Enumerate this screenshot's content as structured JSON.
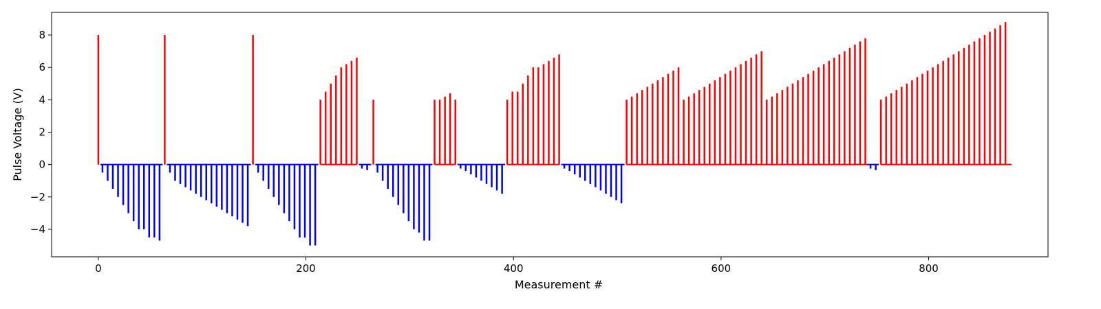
{
  "chart_data": {
    "type": "bar",
    "title": "",
    "xlabel": "Measurement #",
    "ylabel": "Pulse Voltage (V)",
    "xlim": [
      -45,
      915
    ],
    "ylim": [
      -5.7,
      9.4
    ],
    "xticks": [
      0,
      200,
      400,
      600,
      800
    ],
    "yticks": [
      -4,
      -2,
      0,
      2,
      4,
      6,
      8
    ],
    "xtick_labels": [
      "0",
      "200",
      "400",
      "600",
      "800"
    ],
    "ytick_labels": [
      "−4",
      "−2",
      "0",
      "2",
      "4",
      "6",
      "8"
    ],
    "grid": false,
    "legend": "none",
    "colors": {
      "positive": "#ff0000",
      "negative": "#0000ff"
    },
    "series": [
      {
        "color": "#ff0000",
        "points": [
          [
            0,
            8
          ],
          [
            64,
            8
          ],
          [
            149,
            8
          ],
          [
            214,
            4
          ],
          [
            219,
            4.5
          ],
          [
            224,
            5
          ],
          [
            229,
            5.5
          ],
          [
            234,
            6
          ],
          [
            239,
            6.2
          ],
          [
            244,
            6.4
          ],
          [
            249,
            6.6
          ],
          [
            265,
            4
          ],
          [
            324,
            4
          ],
          [
            329,
            4
          ],
          [
            334,
            4.2
          ],
          [
            339,
            4.4
          ],
          [
            344,
            4
          ],
          [
            394,
            4
          ],
          [
            399,
            4.5
          ],
          [
            404,
            4.5
          ],
          [
            409,
            5
          ],
          [
            414,
            5.5
          ],
          [
            419,
            6
          ],
          [
            424,
            6
          ],
          [
            429,
            6.2
          ],
          [
            434,
            6.4
          ],
          [
            439,
            6.6
          ],
          [
            444,
            6.8
          ],
          [
            509,
            4
          ],
          [
            514,
            4.2
          ],
          [
            519,
            4.4
          ],
          [
            524,
            4.6
          ],
          [
            529,
            4.8
          ],
          [
            534,
            5
          ],
          [
            539,
            5.2
          ],
          [
            544,
            5.4
          ],
          [
            549,
            5.6
          ],
          [
            554,
            5.8
          ],
          [
            559,
            6
          ],
          [
            564,
            4
          ],
          [
            569,
            4.2
          ],
          [
            574,
            4.4
          ],
          [
            579,
            4.6
          ],
          [
            584,
            4.8
          ],
          [
            589,
            5
          ],
          [
            594,
            5.2
          ],
          [
            599,
            5.4
          ],
          [
            604,
            5.6
          ],
          [
            609,
            5.8
          ],
          [
            614,
            6
          ],
          [
            619,
            6.2
          ],
          [
            624,
            6.4
          ],
          [
            629,
            6.6
          ],
          [
            634,
            6.8
          ],
          [
            639,
            7
          ],
          [
            644,
            4
          ],
          [
            649,
            4.2
          ],
          [
            654,
            4.4
          ],
          [
            659,
            4.6
          ],
          [
            664,
            4.8
          ],
          [
            669,
            5
          ],
          [
            674,
            5.2
          ],
          [
            679,
            5.4
          ],
          [
            684,
            5.6
          ],
          [
            689,
            5.8
          ],
          [
            694,
            6
          ],
          [
            699,
            6.2
          ],
          [
            704,
            6.4
          ],
          [
            709,
            6.6
          ],
          [
            714,
            6.8
          ],
          [
            719,
            7
          ],
          [
            724,
            7.2
          ],
          [
            729,
            7.4
          ],
          [
            734,
            7.6
          ],
          [
            739,
            7.8
          ],
          [
            754,
            4
          ],
          [
            759,
            4.2
          ],
          [
            764,
            4.4
          ],
          [
            769,
            4.6
          ],
          [
            774,
            4.8
          ],
          [
            779,
            5
          ],
          [
            784,
            5.2
          ],
          [
            789,
            5.4
          ],
          [
            794,
            5.6
          ],
          [
            799,
            5.8
          ],
          [
            804,
            6
          ],
          [
            809,
            6.2
          ],
          [
            814,
            6.4
          ],
          [
            819,
            6.6
          ],
          [
            824,
            6.8
          ],
          [
            829,
            7
          ],
          [
            834,
            7.2
          ],
          [
            839,
            7.4
          ],
          [
            844,
            7.6
          ],
          [
            849,
            7.8
          ],
          [
            854,
            8
          ],
          [
            859,
            8.2
          ],
          [
            864,
            8.4
          ],
          [
            869,
            8.6
          ],
          [
            874,
            8.8
          ]
        ]
      },
      {
        "color": "#0000ff",
        "points": [
          [
            4,
            -0.5
          ],
          [
            9,
            -1
          ],
          [
            14,
            -1.5
          ],
          [
            19,
            -2
          ],
          [
            24,
            -2.5
          ],
          [
            29,
            -3
          ],
          [
            34,
            -3.5
          ],
          [
            39,
            -4
          ],
          [
            44,
            -4
          ],
          [
            49,
            -4.5
          ],
          [
            54,
            -4.5
          ],
          [
            59,
            -4.7
          ],
          [
            69,
            -0.5
          ],
          [
            74,
            -1
          ],
          [
            79,
            -1.2
          ],
          [
            84,
            -1.4
          ],
          [
            89,
            -1.6
          ],
          [
            94,
            -1.8
          ],
          [
            99,
            -2
          ],
          [
            104,
            -2.2
          ],
          [
            109,
            -2.4
          ],
          [
            114,
            -2.6
          ],
          [
            119,
            -2.8
          ],
          [
            124,
            -3
          ],
          [
            129,
            -3.2
          ],
          [
            134,
            -3.4
          ],
          [
            139,
            -3.6
          ],
          [
            144,
            -3.8
          ],
          [
            154,
            -0.5
          ],
          [
            159,
            -1
          ],
          [
            164,
            -1.5
          ],
          [
            169,
            -2
          ],
          [
            174,
            -2.5
          ],
          [
            179,
            -3
          ],
          [
            184,
            -3.5
          ],
          [
            189,
            -4
          ],
          [
            194,
            -4.5
          ],
          [
            199,
            -4.5
          ],
          [
            204,
            -5
          ],
          [
            209,
            -5
          ],
          [
            254,
            -0.25
          ],
          [
            259,
            -0.35
          ],
          [
            269,
            -0.5
          ],
          [
            274,
            -1
          ],
          [
            279,
            -1.5
          ],
          [
            284,
            -2
          ],
          [
            289,
            -2.5
          ],
          [
            294,
            -3
          ],
          [
            299,
            -3.5
          ],
          [
            304,
            -4
          ],
          [
            309,
            -4.2
          ],
          [
            314,
            -4.7
          ],
          [
            319,
            -4.7
          ],
          [
            349,
            -0.25
          ],
          [
            354,
            -0.4
          ],
          [
            359,
            -0.6
          ],
          [
            364,
            -0.8
          ],
          [
            369,
            -1
          ],
          [
            374,
            -1.2
          ],
          [
            379,
            -1.4
          ],
          [
            384,
            -1.6
          ],
          [
            389,
            -1.8
          ],
          [
            449,
            -0.25
          ],
          [
            454,
            -0.4
          ],
          [
            459,
            -0.6
          ],
          [
            464,
            -0.8
          ],
          [
            469,
            -1
          ],
          [
            474,
            -1.2
          ],
          [
            479,
            -1.4
          ],
          [
            484,
            -1.6
          ],
          [
            489,
            -1.8
          ],
          [
            494,
            -2
          ],
          [
            499,
            -2.2
          ],
          [
            504,
            -2.4
          ],
          [
            744,
            -0.25
          ],
          [
            749,
            -0.35
          ]
        ]
      }
    ],
    "baselines": [
      {
        "color": "#ff0000",
        "ranges": [
          [
            0,
            0
          ],
          [
            64,
            64
          ],
          [
            149,
            149
          ],
          [
            214,
            249
          ],
          [
            265,
            265
          ],
          [
            324,
            344
          ],
          [
            394,
            444
          ],
          [
            509,
            741
          ],
          [
            754,
            880
          ]
        ]
      },
      {
        "color": "#0000ff",
        "ranges": [
          [
            2,
            62
          ],
          [
            66,
            147
          ],
          [
            151,
            212
          ],
          [
            251,
            263
          ],
          [
            267,
            322
          ],
          [
            346,
            392
          ],
          [
            446,
            507
          ],
          [
            741,
            752
          ]
        ]
      }
    ]
  }
}
